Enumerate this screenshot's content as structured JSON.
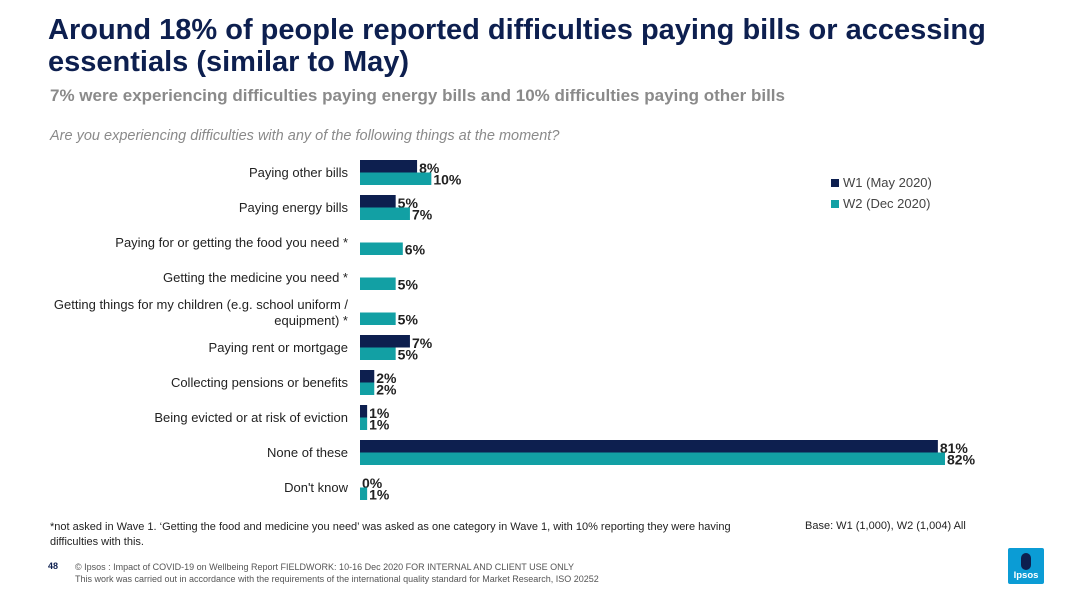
{
  "header": {
    "title": "Around 18% of people reported difficulties paying bills or accessing essentials (similar to May)",
    "subtitle": "7% were experiencing difficulties paying energy bills and 10% difficulties paying other bills",
    "question": "Are you experiencing difficulties with any of the following things at the moment?"
  },
  "colors": {
    "w1": "#0d1f4f",
    "w2": "#12a0a4"
  },
  "chart_data": {
    "type": "bar",
    "orientation": "horizontal",
    "categories": [
      [
        "Paying other bills"
      ],
      [
        "Paying energy bills"
      ],
      [
        "Paying for or getting the food you need *"
      ],
      [
        "Getting the medicine you need *"
      ],
      [
        "Getting things for my children (e.g. school uniform /",
        "equipment) *"
      ],
      [
        "Paying rent or mortgage"
      ],
      [
        "Collecting pensions or benefits"
      ],
      [
        "Being evicted or at risk of eviction"
      ],
      [
        "None of these"
      ],
      [
        "Don't know"
      ]
    ],
    "series": [
      {
        "name": "W1 (May 2020)",
        "values": [
          8,
          5,
          null,
          null,
          null,
          7,
          2,
          1,
          81,
          0
        ]
      },
      {
        "name": "W2 (Dec 2020)",
        "values": [
          10,
          7,
          6,
          5,
          5,
          5,
          2,
          1,
          82,
          1
        ]
      }
    ],
    "value_suffix": "%",
    "xlim": [
      0,
      82
    ],
    "legend_position": "top-right",
    "grid": false
  },
  "legend": {
    "w1": "W1 (May 2020)",
    "w2": "W2 (Dec 2020)"
  },
  "footnote": "*not asked in Wave 1. ‘Getting the food and medicine you need’ was asked as one category in Wave 1, with 10% reporting they were having difficulties with this.",
  "base": "Base: W1 (1,000), W2 (1,004) All",
  "footer": {
    "page_number": "48",
    "line1": "© Ipsos : Impact of COVID-19 on Wellbeing Report FIELDWORK: 10-16 Dec 2020 FOR INTERNAL AND CLIENT USE ONLY",
    "line2": "This work was carried out in accordance with the requirements of the international quality standard for Market Research, ISO 20252"
  },
  "logo": {
    "text": "Ipsos"
  }
}
